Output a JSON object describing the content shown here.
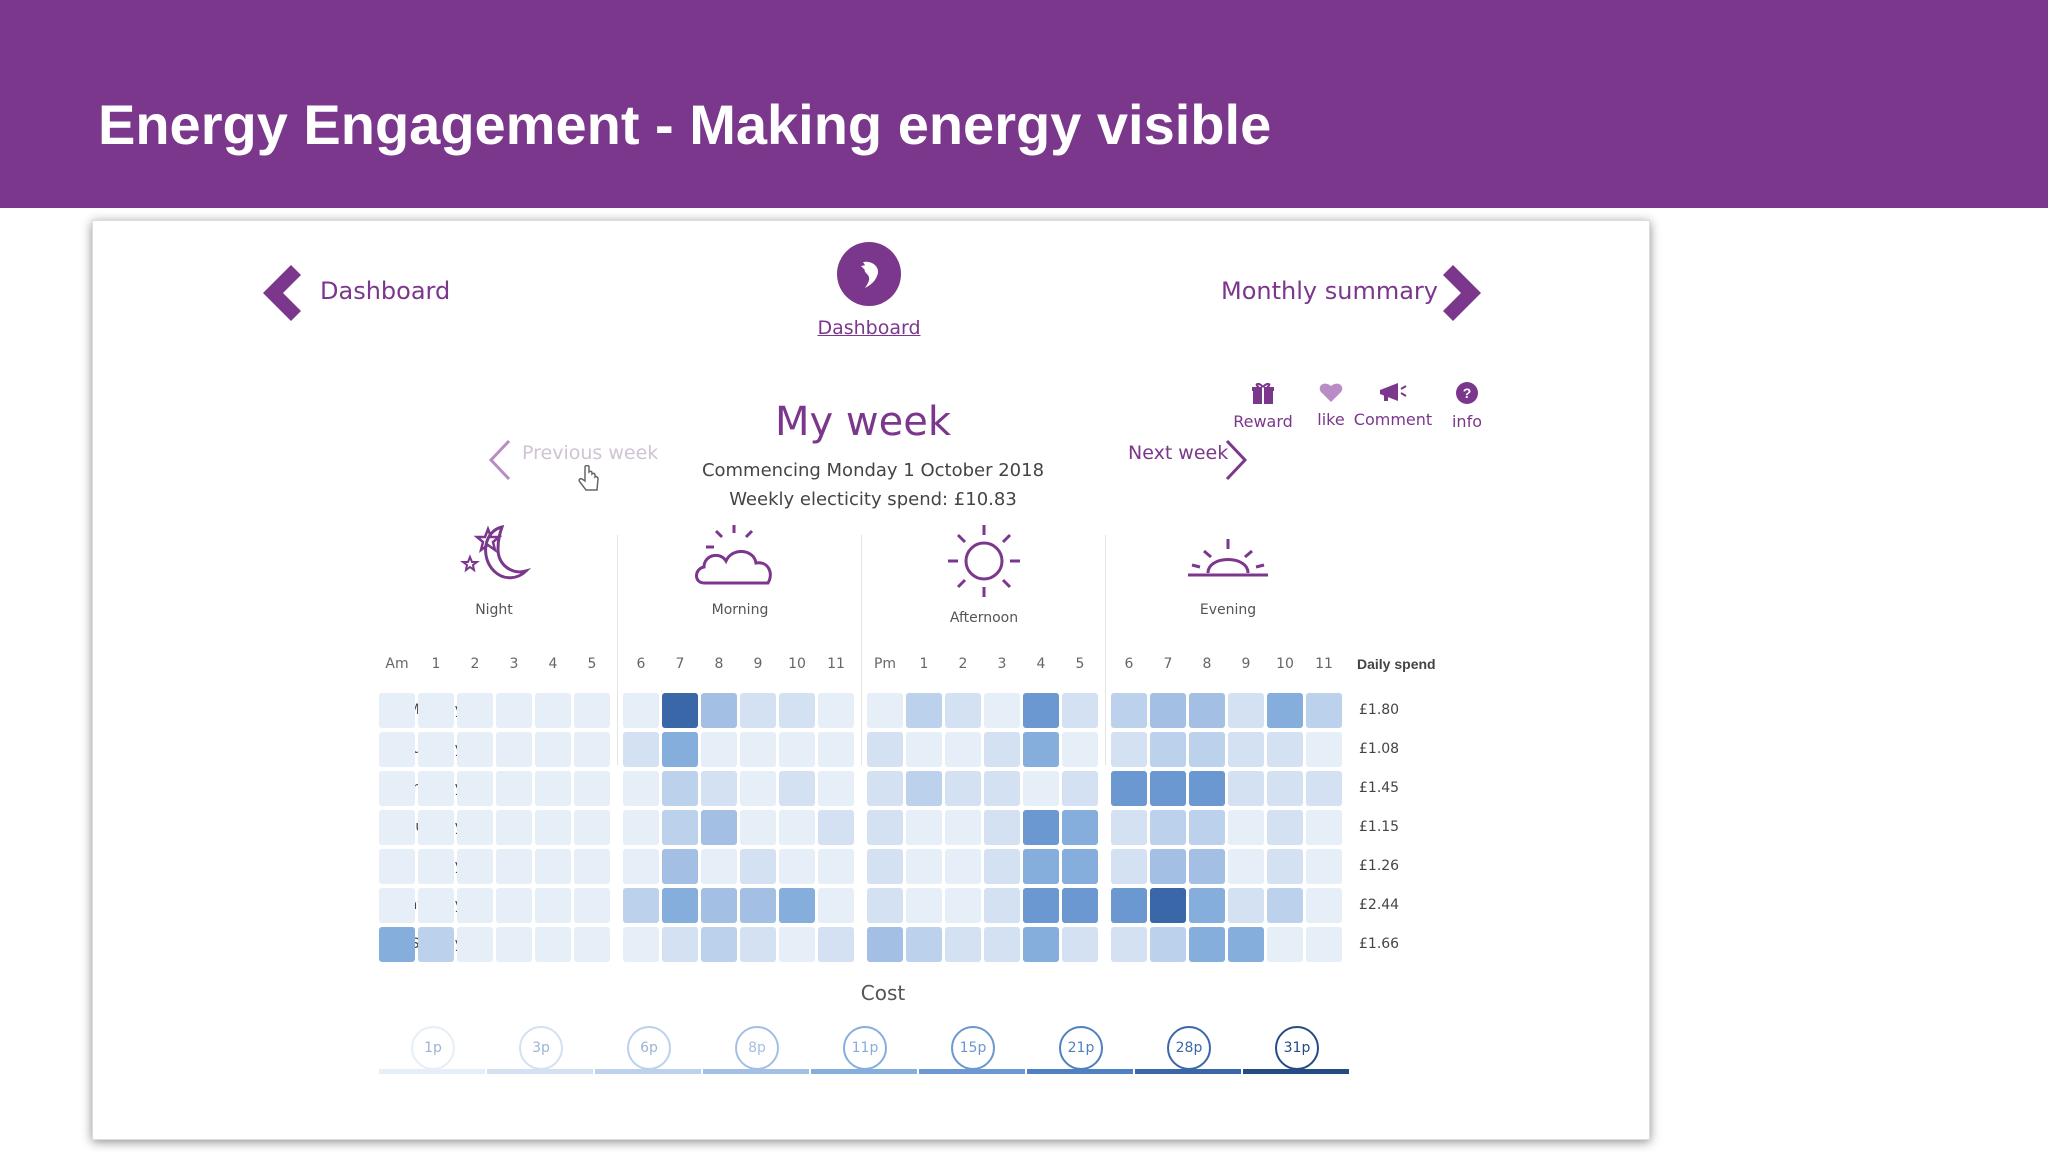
{
  "slide": {
    "title": "Energy Engagement - Making energy visible"
  },
  "colors": {
    "brand": "#7b378c"
  },
  "nav": {
    "back_label": "Dashboard",
    "forward_label": "Monthly summary",
    "logo_label": "Dashboard"
  },
  "week": {
    "heading": "My week",
    "prev_label": "Previous week",
    "next_label": "Next week",
    "commencing": "Commencing Monday 1 October 2018",
    "spend": "Weekly electicity spend: £10.83"
  },
  "actions": [
    {
      "label": "Reward",
      "icon": "gift-icon"
    },
    {
      "label": "like",
      "icon": "heart-icon"
    },
    {
      "label": "Comment",
      "icon": "megaphone-icon"
    },
    {
      "label": "info",
      "icon": "question-icon"
    }
  ],
  "periods": [
    {
      "label": "Night",
      "icon": "moon-stars-icon"
    },
    {
      "label": "Morning",
      "icon": "sun-cloud-icon"
    },
    {
      "label": "Afternoon",
      "icon": "sun-icon"
    },
    {
      "label": "Evening",
      "icon": "sunset-icon"
    }
  ],
  "heatmap": {
    "hour_labels": [
      "Am",
      "1",
      "2",
      "3",
      "4",
      "5",
      "6",
      "7",
      "8",
      "9",
      "10",
      "11",
      "Pm",
      "1",
      "2",
      "3",
      "4",
      "5",
      "6",
      "7",
      "8",
      "9",
      "10",
      "11"
    ],
    "daily_header": "Daily spend",
    "days": [
      {
        "label": "Monday",
        "daily": "£1.80",
        "levels": [
          1,
          1,
          1,
          1,
          1,
          1,
          1,
          8,
          4,
          2,
          2,
          1,
          1,
          3,
          2,
          1,
          6,
          2,
          3,
          4,
          4,
          2,
          5,
          3
        ]
      },
      {
        "label": "Tuesday",
        "daily": "£1.08",
        "levels": [
          1,
          1,
          1,
          1,
          1,
          1,
          2,
          5,
          1,
          1,
          1,
          1,
          2,
          1,
          1,
          2,
          5,
          1,
          2,
          3,
          3,
          2,
          2,
          1
        ]
      },
      {
        "label": "Wednesday",
        "daily": "£1.45",
        "levels": [
          1,
          1,
          1,
          1,
          1,
          1,
          1,
          3,
          2,
          1,
          2,
          1,
          2,
          3,
          2,
          2,
          1,
          2,
          6,
          6,
          6,
          2,
          2,
          2
        ]
      },
      {
        "label": "Thursday",
        "daily": "£1.15",
        "levels": [
          1,
          1,
          1,
          1,
          1,
          1,
          1,
          3,
          4,
          1,
          1,
          2,
          2,
          1,
          1,
          2,
          6,
          5,
          2,
          3,
          3,
          1,
          2,
          1
        ]
      },
      {
        "label": "Friday",
        "daily": "£1.26",
        "levels": [
          1,
          1,
          1,
          1,
          1,
          1,
          1,
          4,
          1,
          2,
          1,
          1,
          2,
          1,
          1,
          2,
          5,
          5,
          2,
          4,
          4,
          1,
          2,
          1
        ]
      },
      {
        "label": "Saturday",
        "daily": "£2.44",
        "levels": [
          1,
          1,
          1,
          1,
          1,
          1,
          3,
          5,
          4,
          4,
          5,
          1,
          2,
          1,
          1,
          2,
          6,
          6,
          6,
          8,
          5,
          2,
          3,
          1
        ]
      },
      {
        "label": "Sunday",
        "daily": "£1.66",
        "levels": [
          5,
          3,
          1,
          1,
          1,
          1,
          1,
          2,
          3,
          2,
          1,
          2,
          4,
          3,
          2,
          2,
          5,
          2,
          2,
          3,
          5,
          5,
          1,
          1
        ]
      }
    ]
  },
  "cost": {
    "label": "Cost",
    "steps": [
      "1p",
      "3p",
      "6p",
      "8p",
      "11p",
      "15p",
      "21p",
      "28p",
      "31p"
    ],
    "scale": [
      "#e6eef8",
      "#d3e1f2",
      "#bcd1ec",
      "#a3c0e4",
      "#86aedc",
      "#6b98d0",
      "#4f80c0",
      "#3a67a8",
      "#254b82"
    ]
  }
}
